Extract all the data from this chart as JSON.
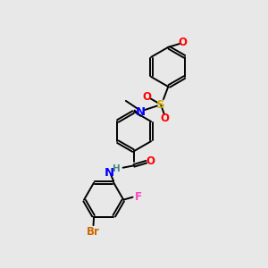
{
  "bg_color": "#e8e8e8",
  "bond_color": "#000000",
  "bond_width": 1.4,
  "atom_colors": {
    "N": "#0000ff",
    "O": "#ff0000",
    "S": "#ccaa00",
    "Br": "#cc6600",
    "F": "#ff44bb",
    "H": "#448888",
    "C": "#000000"
  },
  "font_size": 8.5,
  "fig_size": [
    3.0,
    3.0
  ],
  "dpi": 100
}
